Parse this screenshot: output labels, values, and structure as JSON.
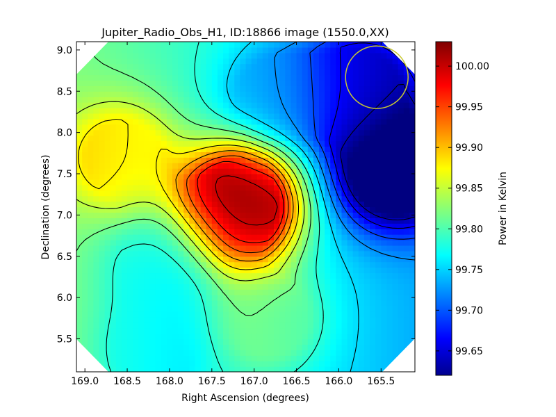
{
  "chart_data": {
    "type": "heatmap",
    "title": "Jupiter_Radio_Obs_H1, ID:18866 image (1550.0,XX)",
    "xlabel": "Right Ascension (degrees)",
    "ylabel": "Declination (degrees)",
    "xlim": [
      169.1,
      165.1
    ],
    "ylim": [
      5.1,
      9.1
    ],
    "x_ticks": [
      169.0,
      168.5,
      168.0,
      167.5,
      167.0,
      166.5,
      166.0,
      165.5
    ],
    "x_tick_labels": [
      "169.0",
      "168.5",
      "168.0",
      "167.5",
      "167.0",
      "166.5",
      "166.0",
      "165.5"
    ],
    "y_ticks": [
      5.5,
      6.0,
      6.5,
      7.0,
      7.5,
      8.0,
      8.5,
      9.0
    ],
    "y_tick_labels": [
      "5.5",
      "6.0",
      "6.5",
      "7.0",
      "7.5",
      "8.0",
      "8.5",
      "9.0"
    ],
    "colormap": "jet",
    "colorbar": {
      "label": "Power in Kelvin",
      "range": [
        99.62,
        100.03
      ],
      "ticks": [
        99.65,
        99.7,
        99.75,
        99.8,
        99.85,
        99.9,
        99.95,
        100.0
      ],
      "tick_labels": [
        "99.65",
        "99.70",
        "99.75",
        "99.80",
        "99.85",
        "99.90",
        "99.95",
        "100.00"
      ]
    },
    "peak": {
      "ra": 167.18,
      "dec": 7.12,
      "value": 100.02
    },
    "features": [
      {
        "ra": 167.18,
        "dec": 7.12,
        "value": 100.02
      },
      {
        "ra": 165.35,
        "dec": 7.55,
        "value": 99.62
      },
      {
        "ra": 165.75,
        "dec": 8.55,
        "value": 99.68
      },
      {
        "ra": 166.75,
        "dec": 8.45,
        "value": 99.74
      },
      {
        "ra": 168.55,
        "dec": 7.7,
        "value": 99.85
      },
      {
        "ra": 168.1,
        "dec": 6.45,
        "value": 99.75
      },
      {
        "ra": 166.8,
        "dec": 5.75,
        "value": 99.82
      },
      {
        "ra": 168.2,
        "dec": 5.35,
        "value": 99.75
      }
    ],
    "contour_levels": [
      99.64,
      99.67,
      99.7,
      99.73,
      99.76,
      99.79,
      99.82,
      99.85,
      99.88,
      99.91,
      99.94,
      99.97,
      100.0,
      100.02
    ],
    "beam_circle": {
      "ra": 165.55,
      "dec": 8.67,
      "radius_deg": 0.37,
      "color": "#c8c832"
    },
    "grid": false,
    "legend": "colorbar-right"
  }
}
